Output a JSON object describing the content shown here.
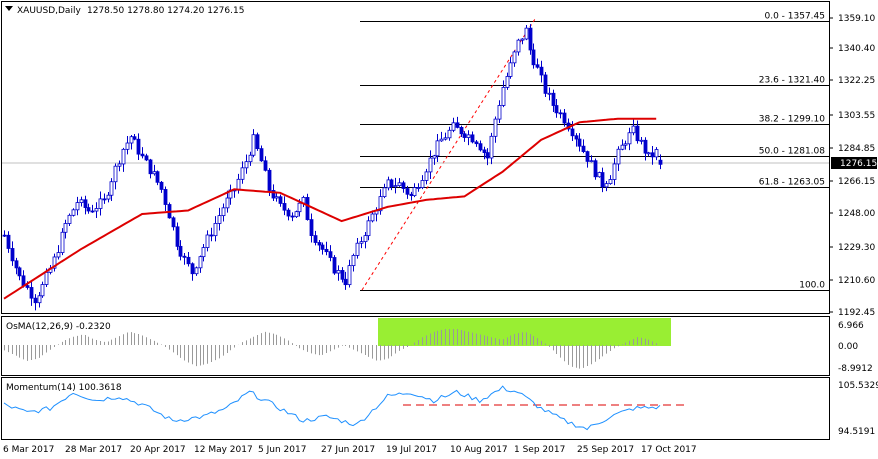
{
  "header": {
    "symbol": "XAUUSD,Daily",
    "ohlc": "1278.50 1278.80 1274.20 1276.15"
  },
  "osma": {
    "label": "OsMA(12,26,9) -0.2320",
    "ticks": [
      "6.966",
      "0.00",
      "-8.9912"
    ]
  },
  "momentum": {
    "label": "Momentum(14) 100.3618",
    "ticks": [
      "105.5329",
      "94.5191"
    ]
  },
  "price_axis": {
    "ticks": [
      "1359.10",
      "1340.40",
      "1322.25",
      "1303.55",
      "1284.85",
      "1266.15",
      "1248.00",
      "1229.30",
      "1210.60",
      "1192.45"
    ],
    "current": "1276.15"
  },
  "time_axis": [
    "6 Mar 2017",
    "28 Mar 2017",
    "20 Apr 2017",
    "12 May 2017",
    "5 Jun 2017",
    "27 Jun 2017",
    "19 Jul 2017",
    "10 Aug 2017",
    "1 Sep 2017",
    "25 Sep 2017",
    "17 Oct 2017"
  ],
  "fibonacci": [
    {
      "label": "0.0 - 1357.45",
      "price": 1357.45
    },
    {
      "label": "23.6 - 1321.40",
      "price": 1321.4
    },
    {
      "label": "38.2 - 1299.10",
      "price": 1299.1
    },
    {
      "label": "50.0 - 1281.08",
      "price": 1281.08
    },
    {
      "label": "61.8 - 1263.05",
      "price": 1263.05
    },
    {
      "label": "100.0",
      "price": 1204.7
    }
  ],
  "colors": {
    "candle": "#0000cc",
    "ma": "#dd0000",
    "osma": "#99ee33",
    "momentum": "#1e90ff",
    "fib": "#000000"
  },
  "chart_data": {
    "type": "candlestick",
    "symbol": "XAUUSD",
    "timeframe": "Daily",
    "ylim": [
      1190,
      1367
    ],
    "last_close": 1276.15,
    "close_path": [
      [
        0,
        1236
      ],
      [
        4,
        1212
      ],
      [
        8,
        1200
      ],
      [
        10,
        1207
      ],
      [
        13,
        1222
      ],
      [
        16,
        1242
      ],
      [
        19,
        1255
      ],
      [
        22,
        1250
      ],
      [
        26,
        1255
      ],
      [
        28,
        1268
      ],
      [
        31,
        1285
      ],
      [
        33,
        1292
      ],
      [
        36,
        1280
      ],
      [
        39,
        1270
      ],
      [
        41,
        1262
      ],
      [
        43,
        1248
      ],
      [
        45,
        1232
      ],
      [
        47,
        1222
      ],
      [
        49,
        1215
      ],
      [
        51,
        1225
      ],
      [
        54,
        1238
      ],
      [
        57,
        1252
      ],
      [
        60,
        1262
      ],
      [
        63,
        1278
      ],
      [
        65,
        1290
      ],
      [
        67,
        1278
      ],
      [
        69,
        1262
      ],
      [
        72,
        1252
      ],
      [
        75,
        1248
      ],
      [
        78,
        1255
      ],
      [
        80,
        1238
      ],
      [
        83,
        1228
      ],
      [
        86,
        1217
      ],
      [
        89,
        1210
      ],
      [
        91,
        1224
      ],
      [
        94,
        1238
      ],
      [
        97,
        1252
      ],
      [
        100,
        1265
      ],
      [
        103,
        1265
      ],
      [
        106,
        1258
      ],
      [
        109,
        1270
      ],
      [
        112,
        1283
      ],
      [
        114,
        1290
      ],
      [
        117,
        1297
      ],
      [
        120,
        1294
      ],
      [
        123,
        1290
      ],
      [
        126,
        1280
      ],
      [
        128,
        1302
      ],
      [
        130,
        1320
      ],
      [
        132,
        1332
      ],
      [
        134,
        1345
      ],
      [
        136,
        1352
      ],
      [
        137,
        1341
      ],
      [
        139,
        1330
      ],
      [
        141,
        1318
      ],
      [
        143,
        1310
      ],
      [
        146,
        1302
      ],
      [
        149,
        1292
      ],
      [
        152,
        1280
      ],
      [
        154,
        1272
      ],
      [
        156,
        1265
      ],
      [
        158,
        1270
      ],
      [
        160,
        1282
      ],
      [
        162,
        1290
      ],
      [
        164,
        1295
      ],
      [
        166,
        1288
      ],
      [
        168,
        1280
      ],
      [
        170,
        1283
      ],
      [
        171,
        1276.15
      ]
    ],
    "ma_path": [
      [
        0,
        1200
      ],
      [
        20,
        1228
      ],
      [
        36,
        1248
      ],
      [
        48,
        1250
      ],
      [
        60,
        1262
      ],
      [
        72,
        1260
      ],
      [
        88,
        1244
      ],
      [
        100,
        1252
      ],
      [
        110,
        1256
      ],
      [
        120,
        1258
      ],
      [
        130,
        1272
      ],
      [
        140,
        1290
      ],
      [
        150,
        1300
      ],
      [
        160,
        1302
      ],
      [
        170,
        1302
      ]
    ],
    "osma_values": [
      -2,
      -4,
      -6,
      -5,
      -2,
      1,
      3,
      4,
      2,
      1,
      3,
      5,
      4,
      2,
      0,
      -3,
      -6,
      -8,
      -7,
      -5,
      -2,
      1,
      3,
      5,
      4,
      2,
      -1,
      -3,
      -4,
      -2,
      0,
      -2,
      -4,
      -6,
      -5,
      -2,
      0,
      3,
      5,
      6,
      6,
      5,
      4,
      3,
      2,
      4,
      5,
      3,
      0,
      -4,
      -8,
      -9,
      -7,
      -4,
      -1,
      1,
      3,
      2,
      0
    ],
    "momentum_ylim": [
      93,
      107
    ],
    "momentum_path": [
      [
        0,
        101
      ],
      [
        6,
        99
      ],
      [
        12,
        100
      ],
      [
        18,
        104
      ],
      [
        24,
        102
      ],
      [
        30,
        103
      ],
      [
        36,
        101
      ],
      [
        44,
        97
      ],
      [
        52,
        98
      ],
      [
        58,
        100
      ],
      [
        64,
        104
      ],
      [
        70,
        101
      ],
      [
        78,
        97
      ],
      [
        84,
        98
      ],
      [
        92,
        96
      ],
      [
        100,
        103
      ],
      [
        106,
        104
      ],
      [
        112,
        102
      ],
      [
        118,
        104
      ],
      [
        124,
        102
      ],
      [
        130,
        105
      ],
      [
        134,
        104
      ],
      [
        140,
        100
      ],
      [
        146,
        97
      ],
      [
        152,
        95
      ],
      [
        158,
        98
      ],
      [
        164,
        100
      ],
      [
        171,
        100.36
      ]
    ],
    "momentum_level": 100,
    "bars": 172
  }
}
